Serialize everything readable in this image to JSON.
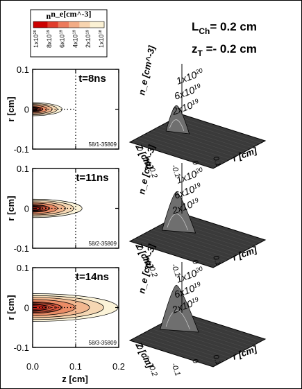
{
  "header": {
    "legend_title": "n_e[cm^-3]",
    "legend_ticks": [
      "1x10^20",
      "8x10^19",
      "6x10^19",
      "4x10^19",
      "2x10^19",
      "1x10^18"
    ],
    "lch": {
      "main": "L",
      "sub": "Ch",
      "rest": "= 0.2 cm"
    },
    "zt": {
      "main": "z",
      "sub": "T",
      "rest": " =- 0.2 cm"
    }
  },
  "colors": {
    "contour_scale": [
      "#cc0000",
      "#e03c2c",
      "#ec7a5c",
      "#f2ac86",
      "#f7d4b0",
      "#fbf1d4"
    ],
    "surface": "#3a3a3a"
  },
  "contour_axes": {
    "ylabel": "r [cm]",
    "xlabel": "z [cm]",
    "yticks": [
      "0.1",
      "0",
      "-0.1"
    ],
    "xticks": [
      "0.0",
      "0.1",
      "0.2"
    ]
  },
  "surface_axes": {
    "zlabel": "n_e [cm^-3]",
    "zticks": [
      "1x10^20",
      "6x10^19",
      "2x10^19"
    ],
    "z_axis_label": "Z [cm]",
    "z_axis_ticks": [
      "0",
      "0.1",
      "0.2"
    ],
    "r_axis_label": "r [cm]",
    "r_axis_ticks": [
      "-0.1",
      "0",
      "0.1"
    ]
  },
  "panels": [
    {
      "time": "t=8ns",
      "shot": "58/1-35809",
      "extent": 0.3,
      "peak": 0.35
    },
    {
      "time": "t=11ns",
      "shot": "58/2-35809",
      "extent": 0.55,
      "peak": 0.75
    },
    {
      "time": "t=14ns",
      "shot": "58/3-35809",
      "extent": 1.0,
      "peak": 0.95
    }
  ],
  "chart_data": [
    {
      "type": "heatmap",
      "title": "t=8ns",
      "xlabel": "z [cm]",
      "ylabel": "r [cm]",
      "xlim": [
        0,
        0.2
      ],
      "ylim": [
        -0.1,
        0.1
      ],
      "note": "58/1-35809"
    },
    {
      "type": "heatmap",
      "title": "t=11ns",
      "xlabel": "z [cm]",
      "ylabel": "r [cm]",
      "xlim": [
        0,
        0.2
      ],
      "ylim": [
        -0.1,
        0.1
      ],
      "note": "58/2-35809"
    },
    {
      "type": "heatmap",
      "title": "t=14ns",
      "xlabel": "z [cm]",
      "ylabel": "r [cm]",
      "xlim": [
        0,
        0.2
      ],
      "ylim": [
        -0.1,
        0.1
      ],
      "note": "58/3-35809"
    }
  ]
}
